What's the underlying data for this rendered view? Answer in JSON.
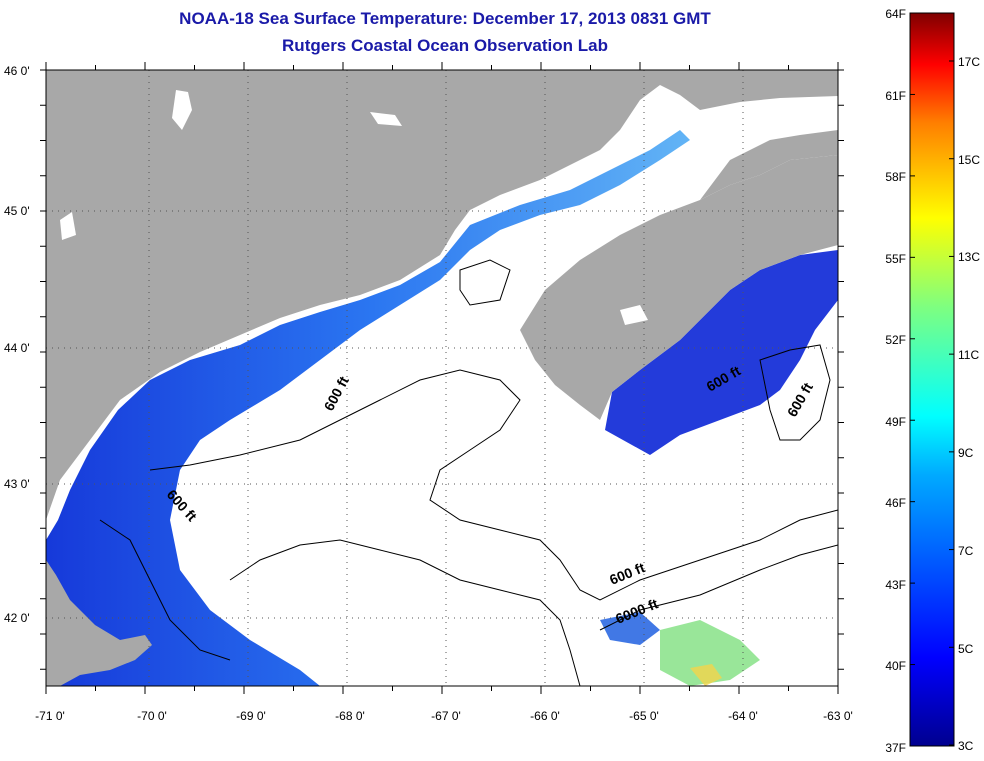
{
  "title": "NOAA-18 Sea Surface Temperature:  December 17, 2013 0831 GMT",
  "subtitle": "Rutgers Coastal Ocean Observation Lab",
  "latitude_labels": [
    "46 0'",
    "45 0'",
    "44 0'",
    "43 0'",
    "42 0'"
  ],
  "longitude_labels": [
    "-71 0'",
    "-70 0'",
    "-69 0'",
    "-68 0'",
    "-67 0'",
    "-66 0'",
    "-65 0'",
    "-64 0'",
    "-63 0'"
  ],
  "contour_labels": [
    "600 ft",
    "600 ft",
    "600 ft",
    "600 ft",
    "600 ft",
    "6000 ft"
  ],
  "colorbar": {
    "fahrenheit_labels": [
      "64F",
      "61F",
      "58F",
      "55F",
      "52F",
      "49F",
      "46F",
      "43F",
      "40F",
      "37F"
    ],
    "celsius_labels": [
      "17C",
      "15C",
      "13C",
      "11C",
      "9C",
      "7C",
      "5C",
      "3C"
    ],
    "colors": [
      "#7f0000",
      "#ff0000",
      "#ff7f00",
      "#ffff00",
      "#7fff7f",
      "#00ffff",
      "#007fff",
      "#0000ff",
      "#00008f"
    ]
  },
  "colors": {
    "land": "#a8a8a8",
    "water_no_data": "#ffffff",
    "title": "#1a1aa8"
  }
}
